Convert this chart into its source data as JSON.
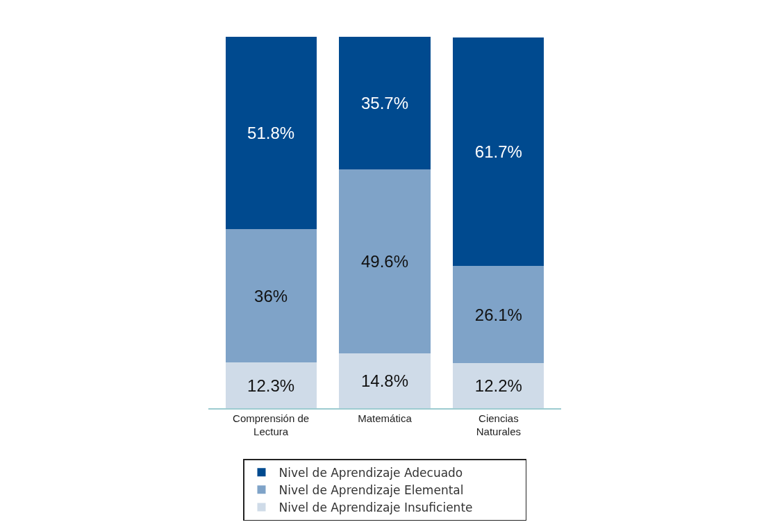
{
  "chart_data": {
    "type": "bar",
    "stacked": true,
    "categories": [
      "Comprensión de Lectura",
      "Matemática",
      "Ciencias Naturales"
    ],
    "series": [
      {
        "name": "Nivel de Aprendizaje Insuficiente",
        "color": "#cfdbe8",
        "values": [
          12.3,
          14.8,
          12.2
        ],
        "value_labels": [
          "12.3%",
          "14.8%",
          "12.2%"
        ]
      },
      {
        "name": "Nivel de Aprendizaje Elemental",
        "color": "#7fa3c8",
        "values": [
          36,
          49.6,
          26.1
        ],
        "value_labels": [
          "36%",
          "49.6%",
          "26.1%"
        ]
      },
      {
        "name": "Nivel de Aprendizaje Adecuado",
        "color": "#004a8f",
        "values": [
          51.8,
          35.7,
          61.7
        ],
        "value_labels": [
          "51.8%",
          "35.7%",
          "61.7%"
        ]
      }
    ],
    "legend": "bottom",
    "grid": false
  }
}
